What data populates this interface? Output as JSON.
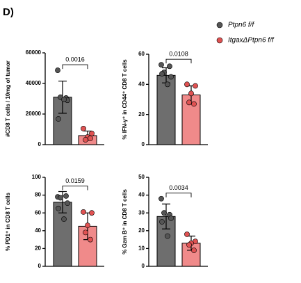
{
  "panel_label": "D)",
  "legend": [
    {
      "name": "Ptpn6 f/f",
      "color": "#6e6e6e",
      "point_color": "#555555"
    },
    {
      "name": "ItgaxΔPtpn6 f/f",
      "color": "#f08a8a",
      "point_color": "#e05252"
    }
  ],
  "chart_data": [
    {
      "type": "bar",
      "ylabel": "#CD8 T cells / 10mg of tumor",
      "categories": [
        null,
        null
      ],
      "values": [
        31000,
        5900
      ],
      "errors": [
        10500,
        3000
      ],
      "points": [
        [
          48600,
          30500,
          31000,
          29000,
          16800,
          29500
        ],
        [
          10500,
          7300,
          5000,
          3200,
          4100
        ]
      ],
      "ylim": [
        0,
        60000
      ],
      "yticks": [
        0,
        20000,
        40000,
        60000
      ],
      "annotation": "0.0016"
    },
    {
      "type": "bar",
      "ylabel": "% IFN-γ⁺  in CD44⁺ CD8 T cells",
      "categories": [
        null,
        null
      ],
      "values": [
        46,
        33
      ],
      "errors": [
        5,
        6
      ],
      "points": [
        [
          53,
          52,
          48,
          45,
          47,
          40
        ],
        [
          40,
          39,
          34,
          28,
          27
        ]
      ],
      "ylim": [
        0,
        60
      ],
      "yticks": [
        0,
        20,
        40,
        60
      ],
      "annotation": "0.0108"
    },
    {
      "type": "bar",
      "ylabel": "% PD1⁺  in CD8 T cells",
      "categories": [
        null,
        null
      ],
      "values": [
        72,
        45
      ],
      "errors": [
        12,
        15
      ],
      "points": [
        [
          78,
          79,
          77,
          71,
          65,
          53
        ],
        [
          61,
          60,
          46,
          38,
          30
        ]
      ],
      "ylim": [
        0,
        100
      ],
      "yticks": [
        0,
        20,
        40,
        60,
        80,
        100
      ],
      "annotation": "0.0159"
    },
    {
      "type": "bar",
      "ylabel": "% Gzm B⁺  in CD8 T cells",
      "categories": [
        null,
        null
      ],
      "values": [
        28,
        13
      ],
      "errors": [
        7,
        4
      ],
      "points": [
        [
          38,
          29,
          30,
          27,
          25,
          17
        ],
        [
          18,
          14,
          13,
          12,
          9
        ]
      ],
      "ylim": [
        0,
        50
      ],
      "yticks": [
        0,
        10,
        20,
        30,
        40,
        50
      ],
      "annotation": "0.0034"
    }
  ]
}
